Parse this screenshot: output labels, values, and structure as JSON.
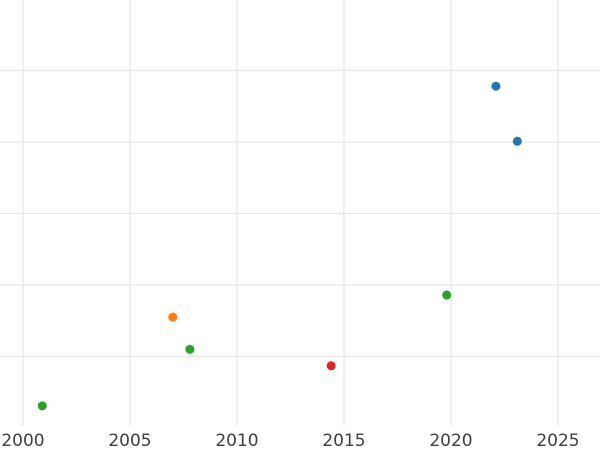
{
  "chart_data": {
    "type": "scatter",
    "title": "",
    "xlabel": "",
    "ylabel": "",
    "x_tick_labels": [
      "2000",
      "2005",
      "2010",
      "2015",
      "2020",
      "2025"
    ],
    "x_ticks": [
      2000,
      2005,
      2010,
      2015,
      2020,
      2025
    ],
    "xlim": [
      1998.9,
      2027.0
    ],
    "ylim": [
      0,
      6
    ],
    "y_scale": "unlabeled",
    "y_gridline_values": [
      1,
      2,
      3,
      4,
      5
    ],
    "grid": true,
    "legend": false,
    "series": [
      {
        "name": "blue",
        "color": "#1f77b4",
        "points": [
          {
            "x": 2022.1,
            "y": 4.78
          },
          {
            "x": 2023.1,
            "y": 4.01
          }
        ]
      },
      {
        "name": "orange",
        "color": "#ff7f0e",
        "points": [
          {
            "x": 2007.0,
            "y": 1.55
          }
        ]
      },
      {
        "name": "green",
        "color": "#2ca02c",
        "points": [
          {
            "x": 2000.9,
            "y": 0.31
          },
          {
            "x": 2007.8,
            "y": 1.1
          },
          {
            "x": 2019.8,
            "y": 1.86
          }
        ]
      },
      {
        "name": "red",
        "color": "#d62728",
        "points": [
          {
            "x": 2014.4,
            "y": 0.87
          }
        ]
      }
    ],
    "marker_radius_px": 4.5,
    "grid_color": "#e6e6e6",
    "tick_label_color": "#404040",
    "background": "#ffffff"
  }
}
